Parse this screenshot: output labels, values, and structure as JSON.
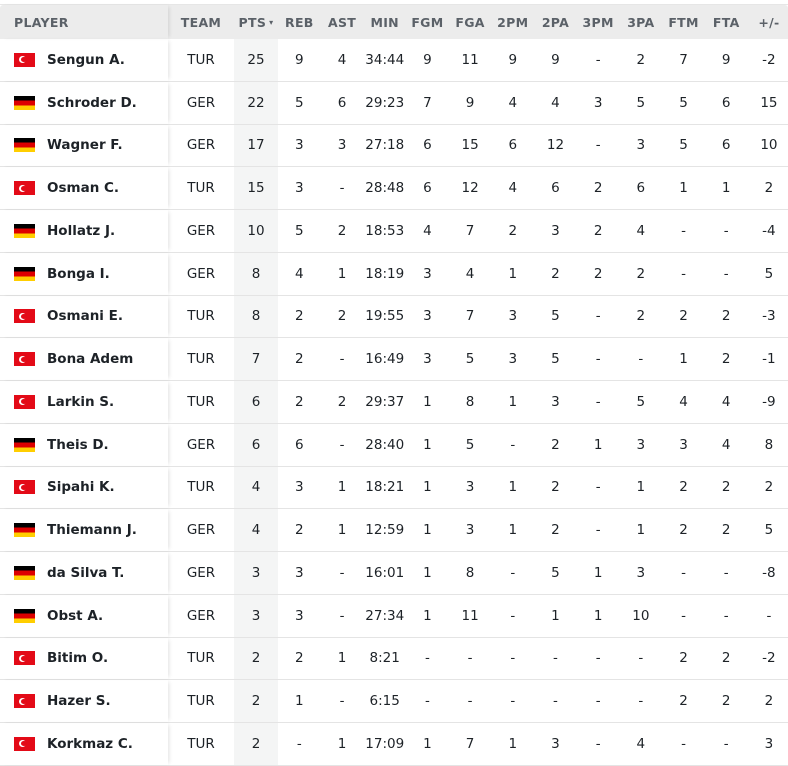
{
  "header": {
    "player": "PLAYER",
    "team": "TEAM",
    "pts": "PTS",
    "sort_indicator": "▾",
    "cols": [
      "REB",
      "AST",
      "MIN",
      "FGM",
      "FGA",
      "2PM",
      "2PA",
      "3PM",
      "3PA",
      "FTM",
      "FTA",
      "+/-"
    ]
  },
  "flag_colors": {
    "TUR": "#e30a17",
    "GER": [
      "#000000",
      "#dd0000",
      "#ffce00"
    ]
  },
  "rows": [
    {
      "name": "Sengun A.",
      "team": "TUR",
      "pts": "25",
      "stats": [
        "9",
        "4",
        "34:44",
        "9",
        "11",
        "9",
        "9",
        "-",
        "2",
        "7",
        "9",
        "-2"
      ]
    },
    {
      "name": "Schroder D.",
      "team": "GER",
      "pts": "22",
      "stats": [
        "5",
        "6",
        "29:23",
        "7",
        "9",
        "4",
        "4",
        "3",
        "5",
        "5",
        "6",
        "15"
      ]
    },
    {
      "name": "Wagner F.",
      "team": "GER",
      "pts": "17",
      "stats": [
        "3",
        "3",
        "27:18",
        "6",
        "15",
        "6",
        "12",
        "-",
        "3",
        "5",
        "6",
        "10"
      ]
    },
    {
      "name": "Osman C.",
      "team": "TUR",
      "pts": "15",
      "stats": [
        "3",
        "-",
        "28:48",
        "6",
        "12",
        "4",
        "6",
        "2",
        "6",
        "1",
        "1",
        "2"
      ]
    },
    {
      "name": "Hollatz J.",
      "team": "GER",
      "pts": "10",
      "stats": [
        "5",
        "2",
        "18:53",
        "4",
        "7",
        "2",
        "3",
        "2",
        "4",
        "-",
        "-",
        "-4"
      ]
    },
    {
      "name": "Bonga I.",
      "team": "GER",
      "pts": "8",
      "stats": [
        "4",
        "1",
        "18:19",
        "3",
        "4",
        "1",
        "2",
        "2",
        "2",
        "-",
        "-",
        "5"
      ]
    },
    {
      "name": "Osmani E.",
      "team": "TUR",
      "pts": "8",
      "stats": [
        "2",
        "2",
        "19:55",
        "3",
        "7",
        "3",
        "5",
        "-",
        "2",
        "2",
        "2",
        "-3"
      ]
    },
    {
      "name": "Bona Adem",
      "team": "TUR",
      "pts": "7",
      "stats": [
        "2",
        "-",
        "16:49",
        "3",
        "5",
        "3",
        "5",
        "-",
        "-",
        "1",
        "2",
        "-1"
      ]
    },
    {
      "name": "Larkin S.",
      "team": "TUR",
      "pts": "6",
      "stats": [
        "2",
        "2",
        "29:37",
        "1",
        "8",
        "1",
        "3",
        "-",
        "5",
        "4",
        "4",
        "-9"
      ]
    },
    {
      "name": "Theis D.",
      "team": "GER",
      "pts": "6",
      "stats": [
        "6",
        "-",
        "28:40",
        "1",
        "5",
        "-",
        "2",
        "1",
        "3",
        "3",
        "4",
        "8"
      ]
    },
    {
      "name": "Sipahi K.",
      "team": "TUR",
      "pts": "4",
      "stats": [
        "3",
        "1",
        "18:21",
        "1",
        "3",
        "1",
        "2",
        "-",
        "1",
        "2",
        "2",
        "2"
      ]
    },
    {
      "name": "Thiemann J.",
      "team": "GER",
      "pts": "4",
      "stats": [
        "2",
        "1",
        "12:59",
        "1",
        "3",
        "1",
        "2",
        "-",
        "1",
        "2",
        "2",
        "5"
      ]
    },
    {
      "name": "da Silva T.",
      "team": "GER",
      "pts": "3",
      "stats": [
        "3",
        "-",
        "16:01",
        "1",
        "8",
        "-",
        "5",
        "1",
        "3",
        "-",
        "-",
        "-8"
      ]
    },
    {
      "name": "Obst A.",
      "team": "GER",
      "pts": "3",
      "stats": [
        "3",
        "-",
        "27:34",
        "1",
        "11",
        "-",
        "1",
        "1",
        "10",
        "-",
        "-",
        "-"
      ]
    },
    {
      "name": "Bitim O.",
      "team": "TUR",
      "pts": "2",
      "stats": [
        "2",
        "1",
        "8:21",
        "-",
        "-",
        "-",
        "-",
        "-",
        "-",
        "2",
        "2",
        "-2"
      ]
    },
    {
      "name": "Hazer S.",
      "team": "TUR",
      "pts": "2",
      "stats": [
        "1",
        "-",
        "6:15",
        "-",
        "-",
        "-",
        "-",
        "-",
        "-",
        "2",
        "2",
        "2"
      ]
    },
    {
      "name": "Korkmaz C.",
      "team": "TUR",
      "pts": "2",
      "stats": [
        "-",
        "1",
        "17:09",
        "1",
        "7",
        "1",
        "3",
        "-",
        "4",
        "-",
        "-",
        "3"
      ]
    }
  ]
}
